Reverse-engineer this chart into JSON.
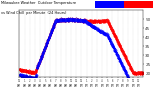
{
  "title": "Milwaukee Weather Outdoor Temperature vs Wind Chill per Minute (24 Hours)",
  "bg_color": "#ffffff",
  "temp_color": "#ff0000",
  "wind_color": "#0000ff",
  "ylim": [
    18,
    55
  ],
  "yticks": [
    20,
    25,
    30,
    35,
    40,
    45,
    50
  ],
  "num_points": 1440
}
